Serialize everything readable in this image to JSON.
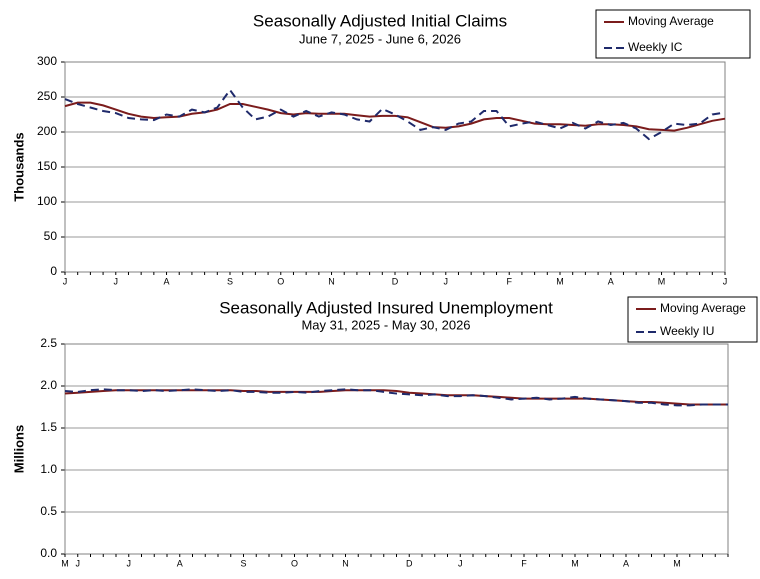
{
  "chart_data": [
    {
      "type": "line",
      "title": "Seasonally Adjusted Initial Claims",
      "subtitle": "June 7, 2025 - June 6, 2026",
      "y_label": "Thousands",
      "categories": [
        "J",
        null,
        null,
        null,
        "J",
        null,
        null,
        null,
        "A",
        null,
        null,
        null,
        null,
        "S",
        null,
        null,
        null,
        "O",
        null,
        null,
        null,
        "N",
        null,
        null,
        null,
        null,
        "D",
        null,
        null,
        null,
        "J",
        null,
        null,
        null,
        null,
        "F",
        null,
        null,
        null,
        "M",
        null,
        null,
        null,
        "A",
        null,
        null,
        null,
        "M",
        null,
        null,
        null,
        null,
        "J"
      ],
      "ylim": [
        0,
        300
      ],
      "yticks": [
        0,
        50,
        100,
        150,
        200,
        250,
        300
      ],
      "grid": true,
      "legend": "top-right",
      "series": [
        {
          "name": "Moving Average",
          "color": "#7b1c1c",
          "dashed": false,
          "values": [
            237,
            242,
            242,
            238,
            232,
            226,
            222,
            220,
            221,
            222,
            226,
            228,
            232,
            240,
            240,
            236,
            232,
            227,
            225,
            227,
            226,
            226,
            226,
            224,
            222,
            223,
            223,
            221,
            214,
            207,
            206,
            208,
            212,
            218,
            220,
            220,
            216,
            212,
            211,
            211,
            210,
            209,
            211,
            211,
            210,
            208,
            204,
            203,
            202,
            206,
            211,
            216,
            219
          ]
        },
        {
          "name": "Weekly IC",
          "color": "#1f2a6b",
          "dashed": true,
          "values": [
            247,
            240,
            235,
            230,
            227,
            220,
            218,
            217,
            225,
            222,
            232,
            228,
            235,
            260,
            235,
            218,
            222,
            232,
            222,
            230,
            222,
            228,
            225,
            218,
            215,
            233,
            225,
            215,
            203,
            207,
            203,
            212,
            215,
            230,
            230,
            208,
            212,
            215,
            210,
            205,
            213,
            205,
            215,
            210,
            213,
            205,
            190,
            200,
            212,
            210,
            212,
            225,
            228
          ]
        }
      ]
    },
    {
      "type": "line",
      "title": "Seasonally Adjusted Insured Unemployment",
      "subtitle": "May 31, 2025 - May 30, 2026",
      "y_label": "Millions",
      "categories": [
        "M",
        "J",
        null,
        null,
        null,
        "J",
        null,
        null,
        null,
        "A",
        null,
        null,
        null,
        null,
        "S",
        null,
        null,
        null,
        "O",
        null,
        null,
        null,
        "N",
        null,
        null,
        null,
        null,
        "D",
        null,
        null,
        null,
        "J",
        null,
        null,
        null,
        null,
        "F",
        null,
        null,
        null,
        "M",
        null,
        null,
        null,
        "A",
        null,
        null,
        null,
        "M",
        null,
        null,
        null,
        null
      ],
      "ylim": [
        0,
        2.5
      ],
      "yticks": [
        {
          "value": 0,
          "label": "0.0"
        },
        0.5,
        {
          "value": 1,
          "label": "1.0"
        },
        1.5,
        {
          "value": 2,
          "label": "2.0"
        },
        2.5
      ],
      "grid": true,
      "legend": "top-right",
      "series": [
        {
          "name": "Moving Average",
          "color": "#7b1c1c",
          "dashed": false,
          "values": [
            1.91,
            1.92,
            1.93,
            1.94,
            1.95,
            1.95,
            1.95,
            1.95,
            1.95,
            1.95,
            1.95,
            1.95,
            1.95,
            1.95,
            1.94,
            1.94,
            1.93,
            1.93,
            1.93,
            1.93,
            1.93,
            1.94,
            1.95,
            1.95,
            1.95,
            1.95,
            1.94,
            1.92,
            1.91,
            1.9,
            1.89,
            1.89,
            1.89,
            1.88,
            1.87,
            1.86,
            1.85,
            1.85,
            1.85,
            1.85,
            1.85,
            1.85,
            1.84,
            1.83,
            1.82,
            1.81,
            1.81,
            1.8,
            1.79,
            1.78,
            1.78,
            1.78,
            1.78
          ]
        },
        {
          "name": "Weekly IU",
          "color": "#1f2a6b",
          "dashed": true,
          "values": [
            1.94,
            1.93,
            1.95,
            1.96,
            1.95,
            1.95,
            1.94,
            1.95,
            1.94,
            1.95,
            1.96,
            1.95,
            1.94,
            1.95,
            1.93,
            1.93,
            1.92,
            1.92,
            1.93,
            1.92,
            1.94,
            1.95,
            1.96,
            1.95,
            1.95,
            1.93,
            1.91,
            1.9,
            1.89,
            1.9,
            1.88,
            1.88,
            1.89,
            1.88,
            1.86,
            1.84,
            1.85,
            1.86,
            1.84,
            1.85,
            1.87,
            1.85,
            1.84,
            1.83,
            1.82,
            1.8,
            1.8,
            1.78,
            1.77,
            1.77,
            1.78,
            1.78,
            1.78
          ]
        }
      ]
    }
  ]
}
